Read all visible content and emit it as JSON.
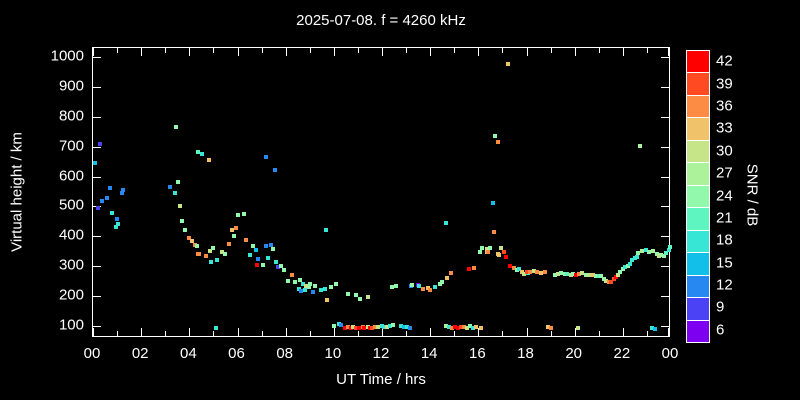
{
  "title": "2025-07-08. f = 4260 kHz",
  "colors": {
    "background": "#000000",
    "frame": "#ffffff",
    "text": "#ffffff"
  },
  "chart_data": {
    "type": "scatter",
    "title": "2025-07-08. f = 4260 kHz",
    "xlabel": "UT Time / hrs",
    "ylabel": "Virtual height / km",
    "colorbar_label": "SNR / dB",
    "xlim": [
      0,
      24
    ],
    "ylim": [
      60,
      1030
    ],
    "grid": false,
    "x_major_tick_hours": [
      0,
      2,
      4,
      6,
      8,
      10,
      12,
      14,
      16,
      18,
      20,
      22,
      24
    ],
    "x_tick_labels": [
      "00",
      "02",
      "04",
      "06",
      "08",
      "10",
      "12",
      "14",
      "16",
      "18",
      "20",
      "22",
      "00"
    ],
    "x_minor_tick_step_hours": 1,
    "y_ticks": [
      100,
      200,
      300,
      400,
      500,
      600,
      700,
      800,
      900,
      1000
    ],
    "snr_bins": [
      {
        "snr": 42,
        "color": "#ff0000"
      },
      {
        "snr": 39,
        "color": "#ff4a22"
      },
      {
        "snr": 36,
        "color": "#fc8c44"
      },
      {
        "snr": 33,
        "color": "#f0c36b"
      },
      {
        "snr": 30,
        "color": "#c6e588"
      },
      {
        "snr": 27,
        "color": "#abf29b"
      },
      {
        "snr": 24,
        "color": "#92f8ac"
      },
      {
        "snr": 21,
        "color": "#5ff5c0"
      },
      {
        "snr": 18,
        "color": "#38e6d5"
      },
      {
        "snr": 15,
        "color": "#12bfe8"
      },
      {
        "snr": 12,
        "color": "#2688f0"
      },
      {
        "snr": 9,
        "color": "#4b42f5"
      },
      {
        "snr": 6,
        "color": "#7d00f0"
      }
    ],
    "points_format": [
      "ut_hours",
      "virtual_height_km",
      "snr_db_bin"
    ],
    "points": [
      [
        0.1,
        645,
        15
      ],
      [
        0.29,
        709,
        9
      ],
      [
        0.2,
        494,
        9
      ],
      [
        0.37,
        518,
        12
      ],
      [
        0.58,
        528,
        12
      ],
      [
        0.7,
        562,
        12
      ],
      [
        0.79,
        478,
        18
      ],
      [
        0.95,
        431,
        18
      ],
      [
        1.0,
        458,
        12
      ],
      [
        1.04,
        441,
        18
      ],
      [
        1.2,
        545,
        12
      ],
      [
        1.25,
        555,
        12
      ],
      [
        3.2,
        566,
        12
      ],
      [
        3.45,
        766,
        24
      ],
      [
        3.4,
        544,
        18
      ],
      [
        3.53,
        582,
        24
      ],
      [
        3.6,
        501,
        30
      ],
      [
        3.71,
        451,
        24
      ],
      [
        3.81,
        421,
        24
      ],
      [
        3.99,
        393,
        36
      ],
      [
        4.12,
        384,
        33
      ],
      [
        4.24,
        371,
        36
      ],
      [
        4.32,
        368,
        24
      ],
      [
        4.36,
        342,
        36
      ],
      [
        4.4,
        341,
        36
      ],
      [
        4.7,
        334,
        36
      ],
      [
        4.86,
        351,
        30
      ],
      [
        4.9,
        314,
        18
      ],
      [
        5.0,
        361,
        24
      ],
      [
        5.15,
        321,
        18
      ],
      [
        5.36,
        348,
        30
      ],
      [
        5.48,
        341,
        24
      ],
      [
        5.65,
        374,
        36
      ],
      [
        4.36,
        682,
        21
      ],
      [
        4.52,
        675,
        18
      ],
      [
        4.81,
        655,
        33
      ],
      [
        5.77,
        421,
        33
      ],
      [
        5.86,
        401,
        24
      ],
      [
        5.94,
        428,
        36
      ],
      [
        6.02,
        471,
        24
      ],
      [
        6.27,
        475,
        24
      ],
      [
        6.35,
        388,
        36
      ],
      [
        6.52,
        338,
        18
      ],
      [
        6.64,
        368,
        24
      ],
      [
        6.77,
        354,
        15
      ],
      [
        6.81,
        304,
        42
      ],
      [
        6.85,
        324,
        12
      ],
      [
        7.06,
        304,
        24
      ],
      [
        7.18,
        368,
        12
      ],
      [
        7.27,
        327,
        18
      ],
      [
        7.39,
        371,
        12
      ],
      [
        7.47,
        358,
        24
      ],
      [
        7.6,
        314,
        18
      ],
      [
        7.68,
        297,
        9
      ],
      [
        7.81,
        301,
        24
      ],
      [
        7.93,
        287,
        24
      ],
      [
        8.1,
        251,
        24
      ],
      [
        8.26,
        271,
        36
      ],
      [
        8.39,
        247,
        24
      ],
      [
        8.55,
        224,
        18
      ],
      [
        8.6,
        254,
        24
      ],
      [
        8.64,
        217,
        12
      ],
      [
        8.72,
        240,
        18
      ],
      [
        8.8,
        220,
        18
      ],
      [
        8.97,
        230,
        24
      ],
      [
        7.18,
        665,
        12
      ],
      [
        7.56,
        622,
        12
      ],
      [
        9.67,
        422,
        18
      ],
      [
        14.65,
        445,
        18
      ],
      [
        22.7,
        702,
        27
      ],
      [
        17.25,
        976,
        33
      ],
      [
        8.85,
        234,
        30
      ],
      [
        9.0,
        240,
        24
      ],
      [
        9.13,
        214,
        12
      ],
      [
        9.2,
        234,
        24
      ],
      [
        9.47,
        220,
        18
      ],
      [
        9.63,
        224,
        18
      ],
      [
        9.7,
        187,
        33
      ],
      [
        9.88,
        230,
        24
      ],
      [
        10.1,
        240,
        24
      ],
      [
        10.6,
        207,
        24
      ],
      [
        10.9,
        204,
        24
      ],
      [
        11.1,
        190,
        24
      ],
      [
        11.4,
        197,
        30
      ],
      [
        12.4,
        230,
        24
      ],
      [
        12.6,
        234,
        24
      ],
      [
        13.2,
        234,
        12
      ],
      [
        13.25,
        237,
        24
      ],
      [
        13.5,
        237,
        6
      ],
      [
        13.55,
        234,
        18
      ],
      [
        13.7,
        224,
        36
      ],
      [
        13.9,
        227,
        33
      ],
      [
        14.0,
        220,
        36
      ],
      [
        14.2,
        230,
        18
      ],
      [
        14.4,
        240,
        24
      ],
      [
        14.5,
        247,
        24
      ],
      [
        14.7,
        261,
        33
      ],
      [
        14.85,
        277,
        36
      ],
      [
        15.6,
        291,
        42
      ],
      [
        15.8,
        294,
        36
      ],
      [
        16.07,
        349,
        24
      ],
      [
        16.15,
        362,
        24
      ],
      [
        16.36,
        358,
        30
      ],
      [
        16.38,
        349,
        33
      ],
      [
        16.42,
        348,
        36
      ],
      [
        16.5,
        362,
        24
      ],
      [
        16.6,
        512,
        15
      ],
      [
        16.65,
        415,
        36
      ],
      [
        16.7,
        735,
        24
      ],
      [
        16.82,
        715,
        36
      ],
      [
        16.8,
        341,
        33
      ],
      [
        16.85,
        338,
        33
      ],
      [
        16.94,
        362,
        30
      ],
      [
        17.07,
        349,
        39
      ],
      [
        17.15,
        332,
        42
      ],
      [
        17.3,
        301,
        42
      ],
      [
        17.5,
        294,
        36
      ],
      [
        17.6,
        287,
        24
      ],
      [
        17.7,
        291,
        18
      ],
      [
        17.8,
        281,
        33
      ],
      [
        17.9,
        274,
        30
      ],
      [
        18.06,
        277,
        18
      ],
      [
        18.0,
        281,
        39
      ],
      [
        18.15,
        281,
        36
      ],
      [
        18.3,
        283,
        30
      ],
      [
        18.45,
        281,
        36
      ],
      [
        18.6,
        279,
        33
      ],
      [
        18.75,
        280,
        36
      ],
      [
        19.2,
        271,
        24
      ],
      [
        19.32,
        274,
        30
      ],
      [
        19.45,
        277,
        24
      ],
      [
        19.58,
        274,
        24
      ],
      [
        19.7,
        274,
        21
      ],
      [
        19.85,
        272,
        30
      ],
      [
        19.95,
        274,
        24
      ],
      [
        20.06,
        271,
        42
      ],
      [
        20.2,
        274,
        36
      ],
      [
        20.3,
        277,
        30
      ],
      [
        20.45,
        272,
        24
      ],
      [
        20.6,
        270,
        30
      ],
      [
        20.75,
        270,
        33
      ],
      [
        20.9,
        269,
        24
      ],
      [
        21.0,
        268,
        21
      ],
      [
        21.1,
        267,
        24
      ],
      [
        21.2,
        257,
        24
      ],
      [
        21.3,
        251,
        30
      ],
      [
        21.42,
        247,
        36
      ],
      [
        21.52,
        247,
        39
      ],
      [
        21.62,
        257,
        39
      ],
      [
        21.72,
        264,
        42
      ],
      [
        21.82,
        271,
        30
      ],
      [
        21.9,
        281,
        24
      ],
      [
        22.0,
        291,
        24
      ],
      [
        22.1,
        297,
        18
      ],
      [
        22.2,
        301,
        24
      ],
      [
        22.3,
        307,
        18
      ],
      [
        22.4,
        321,
        18
      ],
      [
        22.5,
        327,
        18
      ],
      [
        22.57,
        331,
        18
      ],
      [
        22.65,
        344,
        24
      ],
      [
        22.8,
        351,
        27
      ],
      [
        22.95,
        354,
        18
      ],
      [
        23.1,
        348,
        24
      ],
      [
        23.25,
        351,
        27
      ],
      [
        23.4,
        341,
        24
      ],
      [
        23.5,
        334,
        30
      ],
      [
        23.6,
        337,
        27
      ],
      [
        23.7,
        334,
        24
      ],
      [
        23.8,
        344,
        21
      ],
      [
        23.9,
        354,
        18
      ],
      [
        23.97,
        364,
        21
      ],
      [
        5.1,
        93,
        18
      ],
      [
        10.0,
        100,
        24
      ],
      [
        10.2,
        107,
        18
      ],
      [
        10.3,
        103,
        12
      ],
      [
        10.45,
        93,
        42
      ],
      [
        10.6,
        97,
        36
      ],
      [
        10.7,
        93,
        42
      ],
      [
        10.8,
        97,
        30
      ],
      [
        10.93,
        93,
        39
      ],
      [
        11.05,
        93,
        42
      ],
      [
        11.2,
        97,
        36
      ],
      [
        11.27,
        93,
        42
      ],
      [
        11.4,
        97,
        30
      ],
      [
        11.5,
        93,
        42
      ],
      [
        11.6,
        93,
        39
      ],
      [
        11.72,
        97,
        36
      ],
      [
        11.85,
        97,
        30
      ],
      [
        12.0,
        100,
        18
      ],
      [
        12.1,
        97,
        18
      ],
      [
        12.2,
        97,
        30
      ],
      [
        12.32,
        100,
        18
      ],
      [
        12.45,
        103,
        24
      ],
      [
        12.8,
        100,
        18
      ],
      [
        12.92,
        97,
        15
      ],
      [
        13.05,
        97,
        18
      ],
      [
        13.17,
        93,
        12
      ],
      [
        14.66,
        100,
        27
      ],
      [
        14.8,
        97,
        18
      ],
      [
        14.92,
        93,
        36
      ],
      [
        15.03,
        97,
        42
      ],
      [
        15.16,
        93,
        42
      ],
      [
        15.28,
        97,
        39
      ],
      [
        15.4,
        97,
        36
      ],
      [
        15.53,
        93,
        30
      ],
      [
        15.65,
        100,
        24
      ],
      [
        15.78,
        93,
        18
      ],
      [
        15.9,
        97,
        33
      ],
      [
        16.1,
        95,
        33
      ],
      [
        18.9,
        97,
        33
      ],
      [
        19.0,
        93,
        36
      ],
      [
        20.14,
        93,
        30
      ],
      [
        23.2,
        93,
        18
      ],
      [
        23.35,
        90,
        15
      ]
    ]
  }
}
